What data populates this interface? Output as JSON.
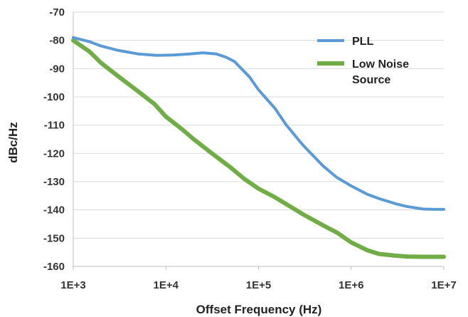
{
  "chart_data": {
    "type": "line",
    "title": "",
    "xlabel": "Offset Frequency (Hz)",
    "ylabel": "dBc/Hz",
    "x_scale": "log",
    "xlim": [
      1000,
      10000000
    ],
    "ylim": [
      -160,
      -70
    ],
    "x_ticks": [
      1000,
      10000,
      100000,
      1000000,
      10000000
    ],
    "x_tick_labels": [
      "1E+3",
      "1E+4",
      "1E+5",
      "1E+6",
      "1E+7"
    ],
    "y_ticks": [
      -70,
      -80,
      -90,
      -100,
      -110,
      -120,
      -130,
      -140,
      -150,
      -160
    ],
    "y_tick_labels": [
      "-70",
      "-80",
      "-90",
      "-100",
      "-110",
      "-120",
      "-130",
      "-140",
      "-150",
      "-160"
    ],
    "grid": "horizontal",
    "legend_position": "top-right",
    "series": [
      {
        "name": "PLL",
        "color": "#5b9bd5",
        "points": [
          [
            1000,
            -79
          ],
          [
            1500,
            -80.5
          ],
          [
            2000,
            -82
          ],
          [
            3000,
            -83.5
          ],
          [
            5000,
            -84.8
          ],
          [
            8000,
            -85.3
          ],
          [
            12000,
            -85.2
          ],
          [
            18000,
            -84.8
          ],
          [
            25000,
            -84.4
          ],
          [
            35000,
            -84.8
          ],
          [
            45000,
            -86
          ],
          [
            55000,
            -87.5
          ],
          [
            80000,
            -93
          ],
          [
            100000,
            -97.5
          ],
          [
            150000,
            -104
          ],
          [
            200000,
            -110
          ],
          [
            300000,
            -117
          ],
          [
            500000,
            -124.5
          ],
          [
            700000,
            -128.5
          ],
          [
            1000000,
            -131.5
          ],
          [
            1500000,
            -134.5
          ],
          [
            2000000,
            -136
          ],
          [
            3000000,
            -137.8
          ],
          [
            4000000,
            -138.8
          ],
          [
            5000000,
            -139.3
          ],
          [
            6000000,
            -139.7
          ],
          [
            8000000,
            -139.8
          ],
          [
            10000000,
            -139.8
          ]
        ]
      },
      {
        "name": "Low Noise Source",
        "color": "#70ad47",
        "points": [
          [
            1000,
            -80
          ],
          [
            1500,
            -84
          ],
          [
            2000,
            -88
          ],
          [
            3000,
            -92.5
          ],
          [
            5000,
            -98
          ],
          [
            7500,
            -102.5
          ],
          [
            10000,
            -107
          ],
          [
            15000,
            -111.5
          ],
          [
            20000,
            -115
          ],
          [
            30000,
            -119.5
          ],
          [
            50000,
            -125
          ],
          [
            70000,
            -129
          ],
          [
            100000,
            -132.5
          ],
          [
            150000,
            -135.5
          ],
          [
            200000,
            -138
          ],
          [
            300000,
            -141.5
          ],
          [
            500000,
            -145.5
          ],
          [
            700000,
            -148
          ],
          [
            1000000,
            -151.5
          ],
          [
            1500000,
            -154.3
          ],
          [
            2000000,
            -155.6
          ],
          [
            3000000,
            -156.2
          ],
          [
            4000000,
            -156.5
          ],
          [
            6000000,
            -156.6
          ],
          [
            10000000,
            -156.6
          ]
        ]
      }
    ]
  }
}
